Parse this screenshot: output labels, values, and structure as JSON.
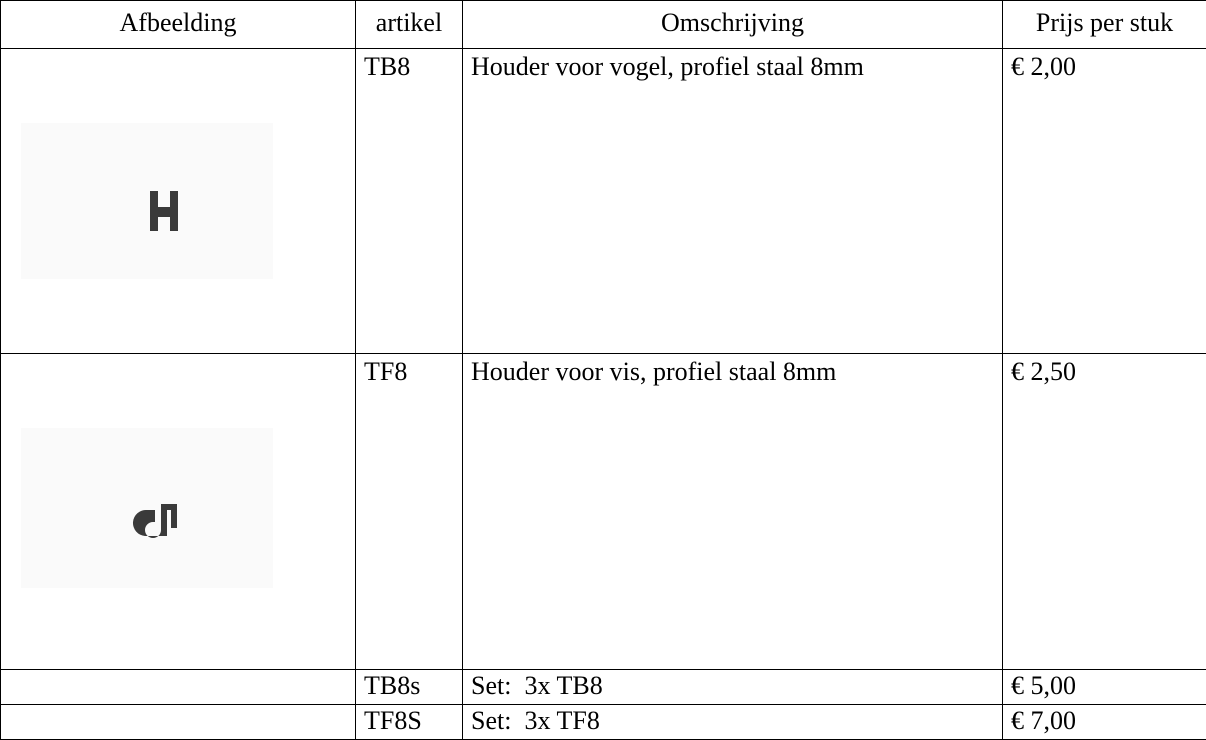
{
  "table": {
    "header": [
      "Afbeelding",
      "artikel",
      "Omschrijving",
      "Prijs per stuk"
    ],
    "rows": [
      [
        "TB8",
        "Houder voor vogel, profiel staal 8mm",
        "€ 2,00"
      ],
      [
        "TF8",
        "Houder voor vis, profiel staal 8mm",
        "€ 2,50"
      ],
      [
        "TB8s",
        "Set:  3x TB8",
        "€ 5,00"
      ],
      [
        "TF8S",
        "Set:  3x TF8",
        "€ 7,00"
      ]
    ]
  }
}
